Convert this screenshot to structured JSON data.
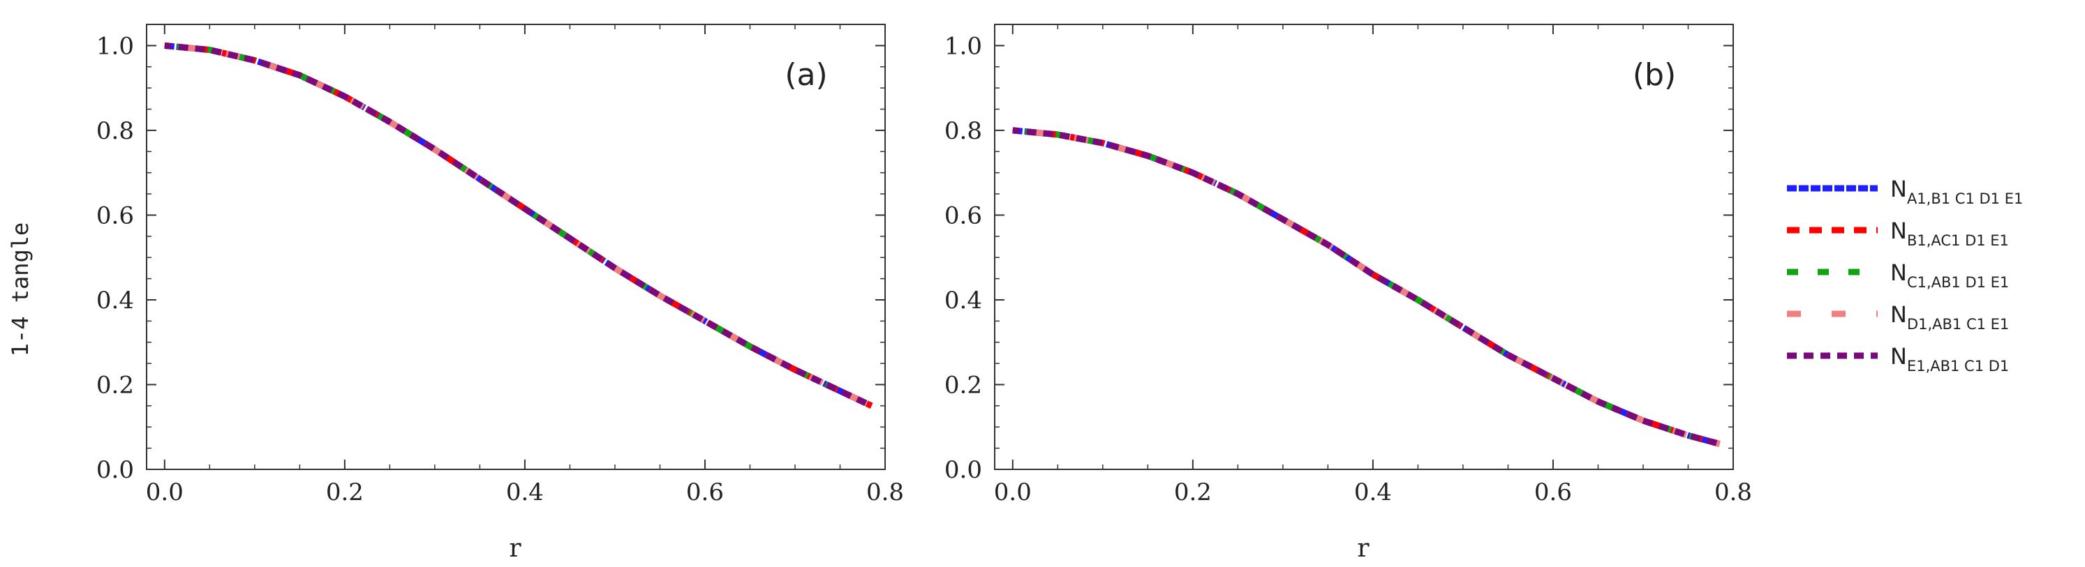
{
  "ylabel": "1-4 tangle",
  "chart_data": [
    {
      "type": "line",
      "panel_label": "(a)",
      "xlabel": "r",
      "ylabel": "1-4 tangle",
      "xlim": [
        -0.02,
        0.8
      ],
      "ylim": [
        0.0,
        1.05
      ],
      "xticks": [
        "0.0",
        "0.2",
        "0.4",
        "0.6",
        "0.8"
      ],
      "yticks": [
        "0.0",
        "0.2",
        "0.4",
        "0.6",
        "0.8",
        "1.0"
      ],
      "x": [
        0.0,
        0.05,
        0.1,
        0.15,
        0.2,
        0.25,
        0.3,
        0.35,
        0.4,
        0.45,
        0.5,
        0.55,
        0.6,
        0.65,
        0.7,
        0.75,
        0.785
      ],
      "series": [
        {
          "name": "N_{A1,B1C1D1E1}",
          "values": [
            1.0,
            0.99,
            0.965,
            0.93,
            0.88,
            0.82,
            0.755,
            0.685,
            0.615,
            0.545,
            0.475,
            0.41,
            0.35,
            0.29,
            0.235,
            0.185,
            0.15
          ]
        },
        {
          "name": "N_{B1,AC1D1E1}",
          "values": [
            1.0,
            0.99,
            0.965,
            0.93,
            0.88,
            0.82,
            0.755,
            0.685,
            0.615,
            0.545,
            0.475,
            0.41,
            0.35,
            0.29,
            0.235,
            0.185,
            0.15
          ]
        },
        {
          "name": "N_{C1,AB1D1E1}",
          "values": [
            1.0,
            0.99,
            0.965,
            0.93,
            0.88,
            0.82,
            0.755,
            0.685,
            0.615,
            0.545,
            0.475,
            0.41,
            0.35,
            0.29,
            0.235,
            0.185,
            0.15
          ]
        },
        {
          "name": "N_{D1,AB1C1E1}",
          "values": [
            1.0,
            0.99,
            0.965,
            0.93,
            0.88,
            0.82,
            0.755,
            0.685,
            0.615,
            0.545,
            0.475,
            0.41,
            0.35,
            0.29,
            0.235,
            0.185,
            0.15
          ]
        },
        {
          "name": "N_{E1,AB1C1D1}",
          "values": [
            1.0,
            0.99,
            0.965,
            0.93,
            0.88,
            0.82,
            0.755,
            0.685,
            0.615,
            0.545,
            0.475,
            0.41,
            0.35,
            0.29,
            0.235,
            0.185,
            0.15
          ]
        }
      ]
    },
    {
      "type": "line",
      "panel_label": "(b)",
      "xlabel": "r",
      "ylabel": "",
      "xlim": [
        -0.02,
        0.8
      ],
      "ylim": [
        0.0,
        1.05
      ],
      "xticks": [
        "0.0",
        "0.2",
        "0.4",
        "0.6",
        "0.8"
      ],
      "yticks": [
        "0.0",
        "0.2",
        "0.4",
        "0.6",
        "0.8",
        "1.0"
      ],
      "x": [
        0.0,
        0.05,
        0.1,
        0.15,
        0.2,
        0.25,
        0.3,
        0.35,
        0.4,
        0.45,
        0.5,
        0.55,
        0.6,
        0.65,
        0.7,
        0.75,
        0.785
      ],
      "series": [
        {
          "name": "N_{A1,B1C1D1E1}",
          "values": [
            0.8,
            0.79,
            0.77,
            0.74,
            0.7,
            0.65,
            0.59,
            0.53,
            0.46,
            0.4,
            0.335,
            0.27,
            0.215,
            0.16,
            0.115,
            0.08,
            0.06
          ]
        },
        {
          "name": "N_{B1,AC1D1E1}",
          "values": [
            0.8,
            0.79,
            0.77,
            0.74,
            0.7,
            0.65,
            0.59,
            0.53,
            0.46,
            0.4,
            0.335,
            0.27,
            0.215,
            0.16,
            0.115,
            0.08,
            0.06
          ]
        },
        {
          "name": "N_{C1,AB1D1E1}",
          "values": [
            0.8,
            0.79,
            0.77,
            0.74,
            0.7,
            0.65,
            0.59,
            0.53,
            0.46,
            0.4,
            0.335,
            0.27,
            0.215,
            0.16,
            0.115,
            0.08,
            0.06
          ]
        },
        {
          "name": "N_{D1,AB1C1E1}",
          "values": [
            0.8,
            0.79,
            0.77,
            0.74,
            0.7,
            0.65,
            0.59,
            0.53,
            0.46,
            0.4,
            0.335,
            0.27,
            0.215,
            0.16,
            0.115,
            0.08,
            0.06
          ]
        },
        {
          "name": "N_{E1,AB1C1D1}",
          "values": [
            0.8,
            0.79,
            0.77,
            0.74,
            0.7,
            0.65,
            0.59,
            0.53,
            0.46,
            0.4,
            0.335,
            0.27,
            0.215,
            0.16,
            0.115,
            0.08,
            0.06
          ]
        }
      ]
    }
  ],
  "legend": {
    "placement": "right",
    "entries": [
      {
        "main": "N",
        "sub": "A1,B1 C1 D1 E1",
        "color": "#1f1fff",
        "style": "solid"
      },
      {
        "main": "N",
        "sub": "B1,AC1 D1 E1",
        "color": "#ff0000",
        "style": "dash-short"
      },
      {
        "main": "N",
        "sub": "C1,AB1 D1 E1",
        "color": "#12a312",
        "style": "dash-mid"
      },
      {
        "main": "N",
        "sub": "D1,AB1 C1 E1",
        "color": "#f08080",
        "style": "dash-long"
      },
      {
        "main": "N",
        "sub": "E1,AB1 C1 D1",
        "color": "#7a0a7a",
        "style": "dash-fine"
      }
    ]
  }
}
